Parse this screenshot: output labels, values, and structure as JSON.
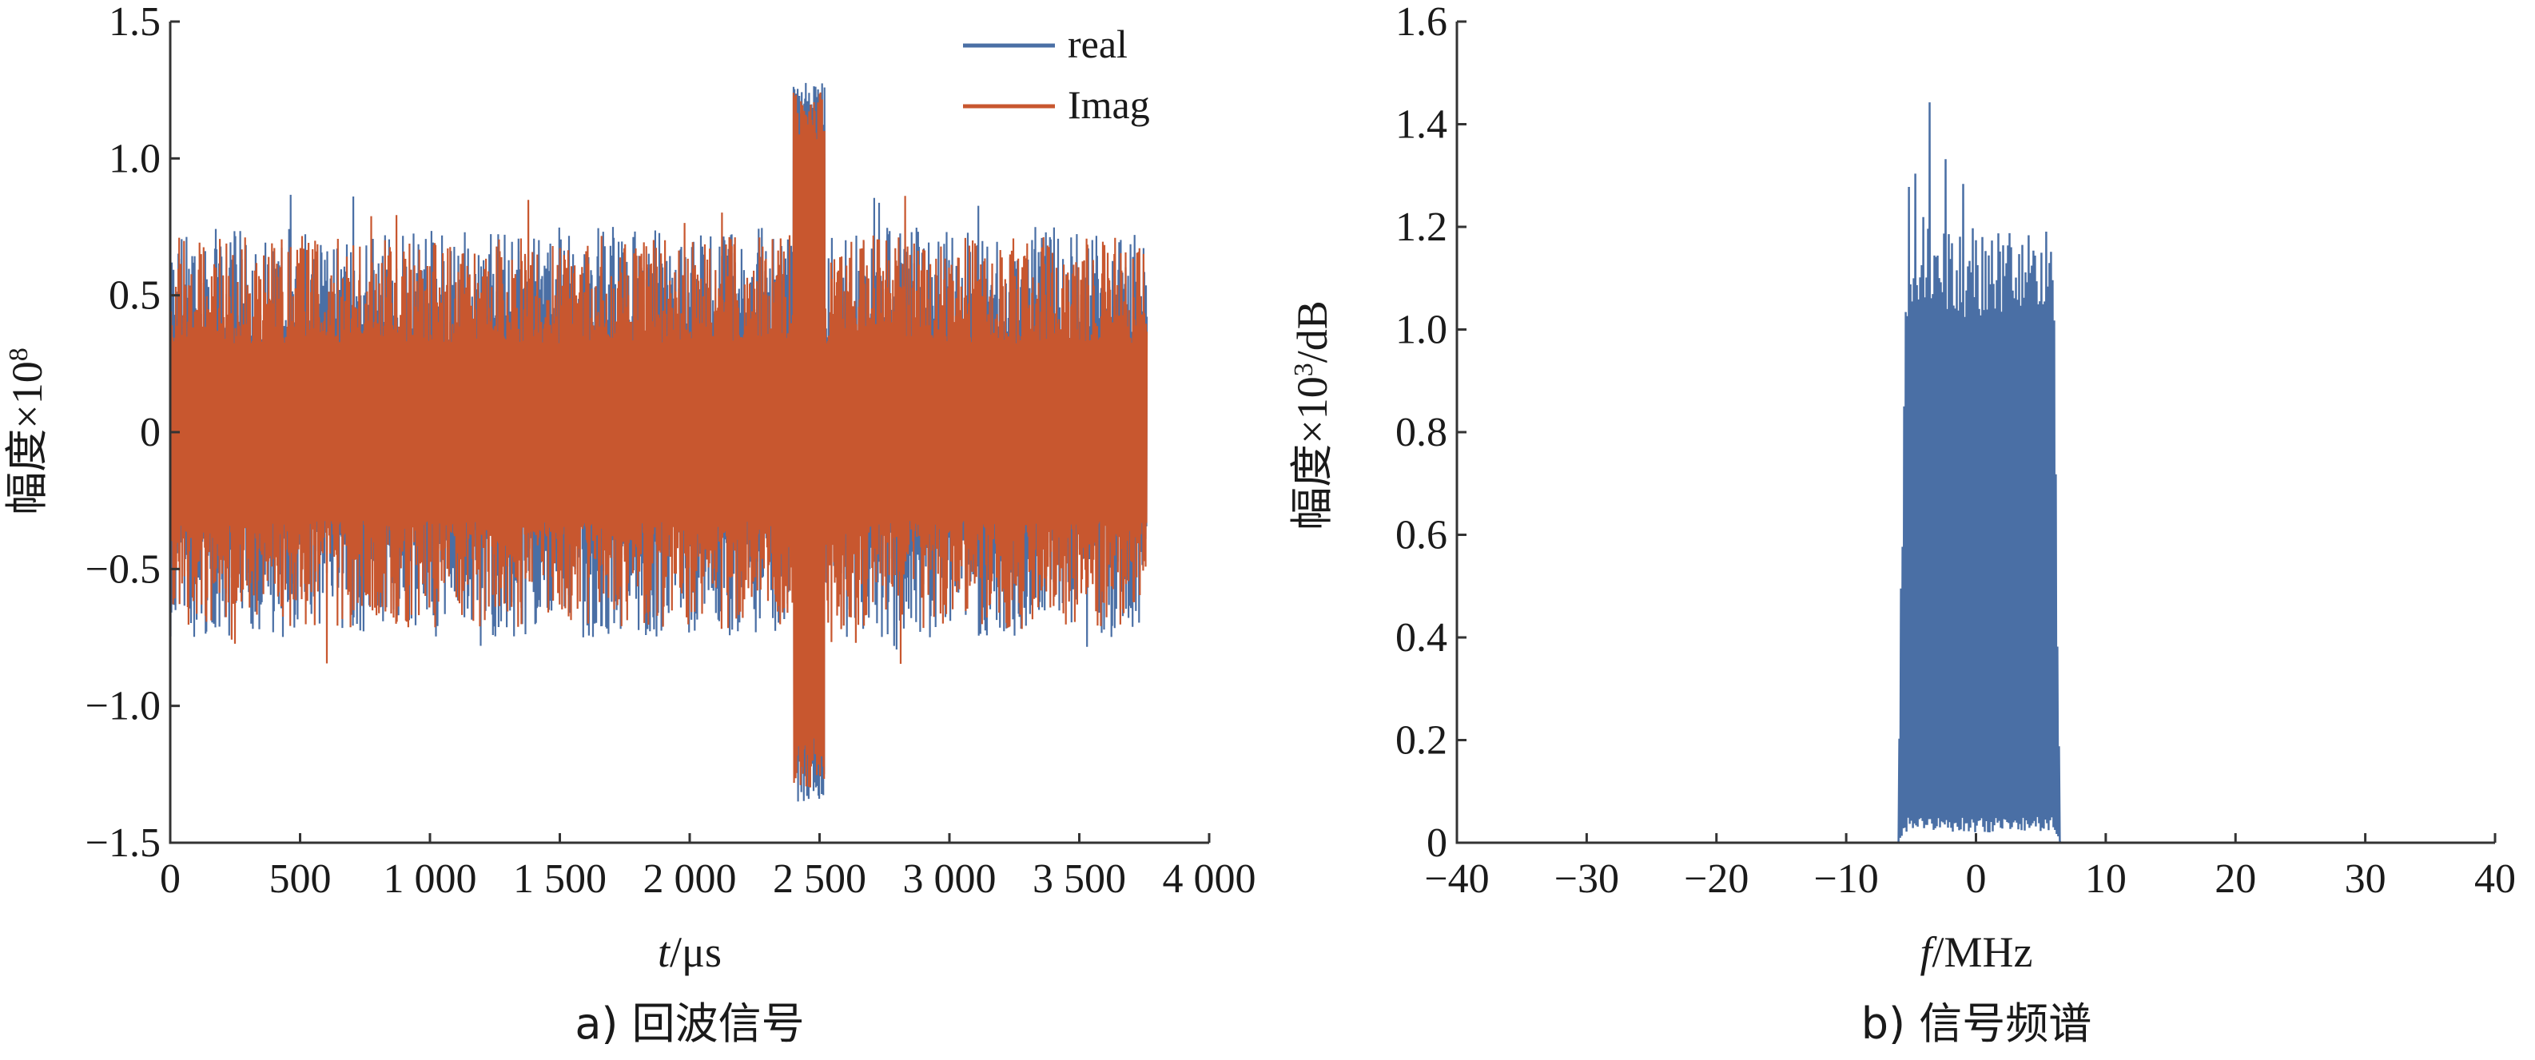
{
  "chart_data": [
    {
      "type": "line",
      "caption": "a) 回波信号",
      "xlabel_italic": "t",
      "xlabel_rest": "/μs",
      "ylabel": "幅度×10",
      "ylabel_sup": "8",
      "xlim": [
        0,
        4000
      ],
      "ylim": [
        -1.5,
        1.5
      ],
      "xticks": [
        0,
        500,
        1000,
        1500,
        2000,
        2500,
        3000,
        3500,
        4000
      ],
      "xtick_labels": [
        "0",
        "500",
        "1 000",
        "1 500",
        "2 000",
        "2 500",
        "3 000",
        "3 500",
        "4 000"
      ],
      "yticks": [
        -1.5,
        -1.0,
        -0.5,
        0,
        0.5,
        1.0,
        1.5
      ],
      "ytick_labels": [
        "−1.5",
        "−1.0",
        "−0.5",
        "0",
        "0.5",
        "1.0",
        "1.5"
      ],
      "legend_position": "top-right",
      "series": [
        {
          "name": "real",
          "color": "#4a6fa5",
          "x_range": [
            0,
            3760
          ],
          "noise_envelope": [
            -0.75,
            0.75
          ],
          "pulse_x_range": [
            2400,
            2520
          ],
          "pulse_envelope": [
            -1.35,
            1.28
          ]
        },
        {
          "name": "Imag",
          "color": "#c8572f",
          "x_range": [
            0,
            3760
          ],
          "noise_envelope": [
            -0.72,
            0.72
          ],
          "pulse_x_range": [
            2400,
            2520
          ],
          "pulse_envelope": [
            -1.3,
            1.25
          ]
        }
      ]
    },
    {
      "type": "area",
      "caption": "b) 信号频谱",
      "xlabel_italic": "f",
      "xlabel_rest": "/MHz",
      "ylabel": "幅度×10",
      "ylabel_sup": "3",
      "ylabel_tail": "/dB",
      "xlim": [
        -40,
        40
      ],
      "ylim": [
        0,
        1.6
      ],
      "xticks": [
        -40,
        -30,
        -20,
        -10,
        0,
        10,
        20,
        30,
        40
      ],
      "xtick_labels": [
        "−40",
        "−30",
        "−20",
        "−10",
        "0",
        "10",
        "20",
        "30",
        "40"
      ],
      "yticks": [
        0,
        0.2,
        0.4,
        0.6,
        0.8,
        1.0,
        1.2,
        1.4,
        1.6
      ],
      "ytick_labels": [
        "0",
        "0.2",
        "0.4",
        "0.6",
        "0.8",
        "1.0",
        "1.2",
        "1.4",
        "1.6"
      ],
      "series": [
        {
          "color": "#4a6fa5",
          "band_x_range": [
            -6,
            6.5
          ],
          "band_level": 1.2,
          "peak_max": 1.51
        }
      ]
    }
  ]
}
